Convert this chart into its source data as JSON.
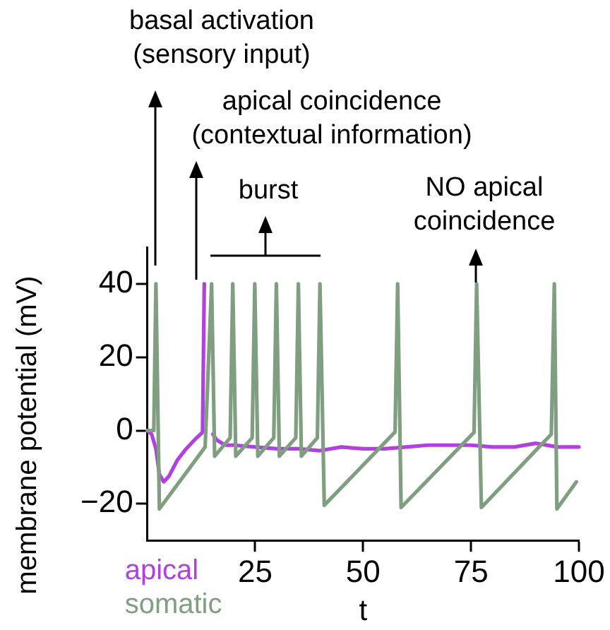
{
  "chart_data": {
    "type": "line",
    "xlabel": "t",
    "ylabel": "membrane potential (mV)",
    "xlim": [
      0,
      100
    ],
    "xticks": [
      25,
      50,
      75,
      100
    ],
    "ylim": [
      -30,
      50
    ],
    "yticks": [
      {
        "value": -20,
        "label": "−20"
      },
      0,
      20,
      40
    ],
    "grid": false,
    "legend": "bottom left",
    "marker": "none",
    "line_style": "solid",
    "series": [
      {
        "name": "somatic",
        "color": "#7f9f80",
        "x": [
          0,
          1.5,
          2,
          2.8,
          13.4,
          14.9,
          15.6,
          19.2,
          19.8,
          20.5,
          24.3,
          24.9,
          25.6,
          29.3,
          29.9,
          30.6,
          34.4,
          35,
          35.7,
          39.4,
          40,
          41,
          57.4,
          58,
          58.8,
          75.7,
          76.3,
          77.4,
          93.6,
          94.3,
          94.9,
          99.4
        ],
        "values": [
          0,
          0,
          40,
          -21.4,
          -4.5,
          40,
          -7,
          -2,
          40,
          -7,
          -2,
          40,
          -7,
          -2,
          40,
          -7,
          -2,
          40,
          -7,
          -2,
          40,
          -20.4,
          -0.4,
          40,
          -21,
          -0.5,
          40,
          -21,
          -1,
          40,
          -21.4,
          -14
        ]
      },
      {
        "name": "apical",
        "color": "#b040e0",
        "x": [
          0,
          1,
          2,
          2.8,
          3.8,
          5,
          7,
          9,
          11,
          12.8,
          13.2,
          13.5,
          14.9,
          15.2,
          16,
          18,
          20,
          25,
          30,
          35,
          40,
          45,
          50,
          55,
          60,
          65,
          70,
          75,
          80,
          85,
          90,
          95,
          100
        ],
        "values": [
          0,
          -1,
          -5,
          -12,
          -14,
          -12.5,
          -8,
          -5,
          -2.5,
          -0.5,
          40,
          null,
          null,
          -1,
          -2.5,
          -4,
          -4,
          -4.5,
          -5,
          -5,
          -5.5,
          -4.5,
          -5,
          -5,
          -4.5,
          -4,
          -4,
          -4,
          -4.5,
          -4.5,
          -3.5,
          -4.5,
          -4.5
        ]
      }
    ],
    "annotations": [
      "basal activation\n(sensory input)",
      "apical coincidence\n(contextual information)",
      "burst",
      "NO apical\ncoincidence"
    ]
  }
}
